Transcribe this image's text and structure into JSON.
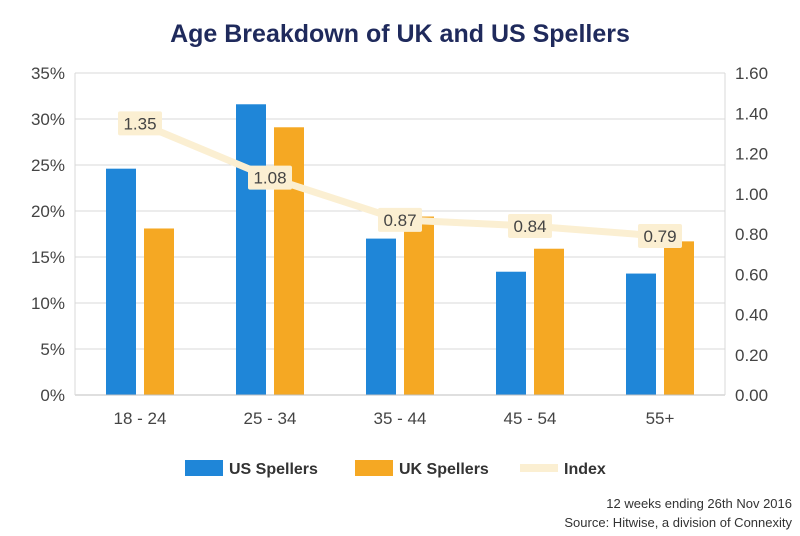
{
  "chart_data": {
    "type": "bar",
    "title": "Age Breakdown of UK and US Spellers",
    "categories": [
      "18 - 24",
      "25 - 34",
      "35 - 44",
      "45 - 54",
      "55+"
    ],
    "series": [
      {
        "name": "US Spellers",
        "type": "bar",
        "axis": "left",
        "color": "#1f86d8",
        "values": [
          24.6,
          31.6,
          17.0,
          13.4,
          13.2
        ]
      },
      {
        "name": "UK Spellers",
        "type": "bar",
        "axis": "left",
        "color": "#f5a823",
        "values": [
          18.1,
          29.1,
          19.4,
          15.9,
          16.7
        ]
      },
      {
        "name": "Index",
        "type": "line",
        "axis": "right",
        "color": "#fbefd2",
        "values": [
          1.35,
          1.08,
          0.87,
          0.84,
          0.79
        ]
      }
    ],
    "data_labels": [
      "1.35",
      "1.08",
      "0.87",
      "0.84",
      "0.79"
    ],
    "y_left": {
      "min": 0,
      "max": 35,
      "step": 5,
      "ticks": [
        "0%",
        "5%",
        "10%",
        "15%",
        "20%",
        "25%",
        "30%",
        "35%"
      ]
    },
    "y_right": {
      "min": 0,
      "max": 1.6,
      "step": 0.2,
      "ticks": [
        "0.00",
        "0.20",
        "0.40",
        "0.60",
        "0.80",
        "1.00",
        "1.20",
        "1.40",
        "1.60"
      ]
    },
    "grid": true,
    "legend_position": "bottom",
    "notes": [
      "12 weeks ending 26th Nov 2016",
      "Source: Hitwise, a division of Connexity"
    ]
  }
}
